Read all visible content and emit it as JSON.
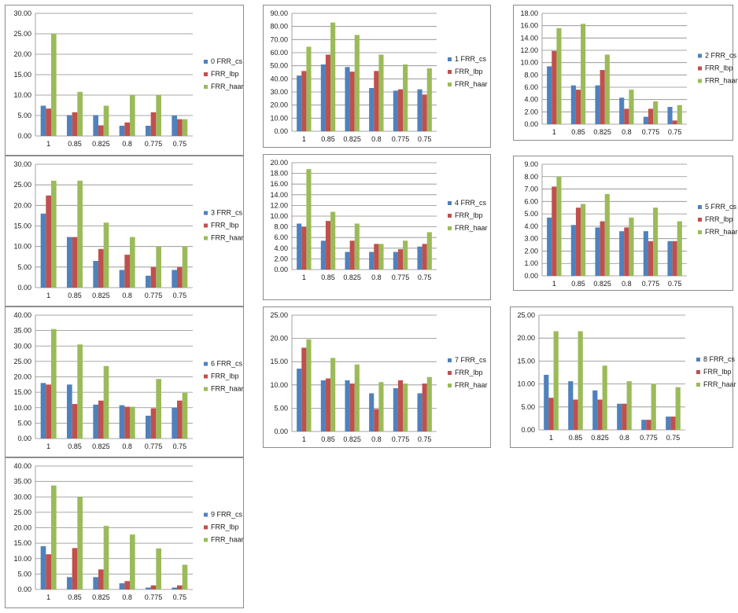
{
  "colors": {
    "FRR_cs": "#4F81BD",
    "FRR_lbp": "#C0504D",
    "FRR_haar": "#9BBB59"
  },
  "chart_data": [
    {
      "id": "c0",
      "type": "bar",
      "categories": [
        "1",
        "0.85",
        "0.825",
        "0.8",
        "0.775",
        "0.75"
      ],
      "ylim": [
        0,
        30
      ],
      "ystep": 5,
      "yticks": [
        "0.00",
        "5.00",
        "10.00",
        "15.00",
        "20.00",
        "25.00",
        "30.00"
      ],
      "legend_position": "right",
      "grid": true,
      "series": [
        {
          "name": "0 FRR_cs",
          "key": "FRR_cs",
          "values": [
            7.4,
            5.1,
            5.1,
            2.5,
            2.5,
            5.0
          ]
        },
        {
          "name": "FRR_lbp",
          "key": "FRR_lbp",
          "values": [
            6.7,
            5.8,
            2.6,
            3.3,
            5.8,
            4.1
          ]
        },
        {
          "name": "FRR_haar",
          "key": "FRR_haar",
          "values": [
            25.0,
            10.8,
            7.4,
            10.0,
            10.0,
            4.1
          ]
        }
      ]
    },
    {
      "id": "c1",
      "type": "bar",
      "categories": [
        "1",
        "0.85",
        "0.825",
        "0.8",
        "0.775",
        "0.75"
      ],
      "ylim": [
        0,
        90
      ],
      "ystep": 10,
      "yticks": [
        "0.00",
        "10.00",
        "20.00",
        "30.00",
        "40.00",
        "50.00",
        "60.00",
        "70.00",
        "80.00",
        "90.00"
      ],
      "legend_position": "right",
      "grid": true,
      "series": [
        {
          "name": "1 FRR_cs",
          "key": "FRR_cs",
          "values": [
            42.5,
            51.0,
            49.0,
            33.0,
            31.0,
            32.0
          ]
        },
        {
          "name": "FRR_lbp",
          "key": "FRR_lbp",
          "values": [
            46.0,
            58.5,
            45.5,
            46.0,
            32.0,
            28.0
          ]
        },
        {
          "name": "FRR_haar",
          "key": "FRR_haar",
          "values": [
            64.5,
            83.0,
            73.5,
            58.5,
            51.0,
            48.0
          ]
        }
      ]
    },
    {
      "id": "c2",
      "type": "bar",
      "categories": [
        "1",
        "0.85",
        "0.825",
        "0.8",
        "0.775",
        "0.75"
      ],
      "ylim": [
        0,
        18
      ],
      "ystep": 2,
      "yticks": [
        "0.00",
        "2.00",
        "4.00",
        "6.00",
        "8.00",
        "10.00",
        "12.00",
        "14.00",
        "16.00",
        "18.00"
      ],
      "legend_position": "right",
      "grid": true,
      "series": [
        {
          "name": "2 FRR_cs",
          "key": "FRR_cs",
          "values": [
            9.4,
            6.3,
            6.3,
            4.3,
            1.2,
            2.8
          ]
        },
        {
          "name": "FRR_lbp",
          "key": "FRR_lbp",
          "values": [
            11.9,
            5.6,
            8.8,
            2.5,
            2.5,
            0.6
          ]
        },
        {
          "name": "FRR_haar",
          "key": "FRR_haar",
          "values": [
            15.6,
            16.3,
            11.3,
            5.6,
            3.7,
            3.1
          ]
        }
      ]
    },
    {
      "id": "c3",
      "type": "bar",
      "categories": [
        "1",
        "0.85",
        "0.825",
        "0.8",
        "0.775",
        "0.75"
      ],
      "ylim": [
        0,
        30
      ],
      "ystep": 5,
      "yticks": [
        "0.00",
        "5.00",
        "10.00",
        "15.00",
        "20.00",
        "25.00",
        "30.00"
      ],
      "legend_position": "right",
      "grid": true,
      "series": [
        {
          "name": "3 FRR_cs",
          "key": "FRR_cs",
          "values": [
            18.0,
            12.3,
            6.5,
            4.3,
            2.9,
            4.3
          ]
        },
        {
          "name": "FRR_lbp",
          "key": "FRR_lbp",
          "values": [
            22.4,
            12.3,
            9.4,
            8.0,
            5.0,
            5.0
          ]
        },
        {
          "name": "FRR_haar",
          "key": "FRR_haar",
          "values": [
            26.0,
            26.0,
            15.8,
            12.3,
            10.0,
            10.0
          ]
        }
      ]
    },
    {
      "id": "c4",
      "type": "bar",
      "categories": [
        "1",
        "0.85",
        "0.825",
        "0.8",
        "0.775",
        "0.75"
      ],
      "ylim": [
        0,
        20
      ],
      "ystep": 2,
      "yticks": [
        "0.00",
        "2.00",
        "4.00",
        "6.00",
        "8.00",
        "10.00",
        "12.00",
        "14.00",
        "16.00",
        "18.00",
        "20.00"
      ],
      "legend_position": "right",
      "grid": true,
      "series": [
        {
          "name": "4 FRR_cs",
          "key": "FRR_cs",
          "values": [
            8.6,
            5.4,
            3.3,
            3.3,
            3.3,
            4.3
          ]
        },
        {
          "name": "FRR_lbp",
          "key": "FRR_lbp",
          "values": [
            8.0,
            9.1,
            5.4,
            4.8,
            3.8,
            4.8
          ]
        },
        {
          "name": "FRR_haar",
          "key": "FRR_haar",
          "values": [
            18.8,
            10.8,
            8.6,
            4.8,
            5.4,
            7.0
          ]
        }
      ]
    },
    {
      "id": "c5",
      "type": "bar",
      "categories": [
        "1",
        "0.85",
        "0.825",
        "0.8",
        "0.775",
        "0.75"
      ],
      "ylim": [
        0,
        9
      ],
      "ystep": 1,
      "yticks": [
        "0.00",
        "1.00",
        "2.00",
        "3.00",
        "4.00",
        "5.00",
        "6.00",
        "7.00",
        "8.00",
        "9.00"
      ],
      "legend_position": "right",
      "grid": true,
      "series": [
        {
          "name": "5 FRR_cs",
          "key": "FRR_cs",
          "values": [
            4.7,
            4.1,
            3.9,
            3.6,
            3.6,
            2.8
          ]
        },
        {
          "name": "FRR_lbp",
          "key": "FRR_lbp",
          "values": [
            7.2,
            5.5,
            4.4,
            3.9,
            2.8,
            2.8
          ]
        },
        {
          "name": "FRR_haar",
          "key": "FRR_haar",
          "values": [
            8.0,
            5.8,
            6.6,
            4.7,
            5.5,
            4.4
          ]
        }
      ]
    },
    {
      "id": "c6",
      "type": "bar",
      "categories": [
        "1",
        "0.85",
        "0.825",
        "0.8",
        "0.775",
        "0.75"
      ],
      "ylim": [
        0,
        40
      ],
      "ystep": 5,
      "yticks": [
        "0.00",
        "5.00",
        "10.00",
        "15.00",
        "20.00",
        "25.00",
        "30.00",
        "35.00",
        "40.00"
      ],
      "legend_position": "right",
      "grid": true,
      "series": [
        {
          "name": "6 FRR_cs",
          "key": "FRR_cs",
          "values": [
            18.0,
            17.5,
            11.0,
            10.8,
            7.4,
            10.0
          ]
        },
        {
          "name": "FRR_lbp",
          "key": "FRR_lbp",
          "values": [
            17.5,
            11.2,
            12.3,
            10.3,
            9.8,
            12.3
          ]
        },
        {
          "name": "FRR_haar",
          "key": "FRR_haar",
          "values": [
            35.5,
            30.5,
            23.5,
            10.3,
            19.3,
            14.8
          ]
        }
      ]
    },
    {
      "id": "c7",
      "type": "bar",
      "categories": [
        "1",
        "0.85",
        "0.825",
        "0.8",
        "0.775",
        "0.75"
      ],
      "ylim": [
        0,
        25
      ],
      "ystep": 5,
      "yticks": [
        "0.00",
        "5.00",
        "10.00",
        "15.00",
        "20.00",
        "25.00"
      ],
      "legend_position": "right",
      "grid": true,
      "series": [
        {
          "name": "7 FRR_cs",
          "key": "FRR_cs",
          "values": [
            13.5,
            11.0,
            11.0,
            8.2,
            9.3,
            8.2
          ]
        },
        {
          "name": "FRR_lbp",
          "key": "FRR_lbp",
          "values": [
            18.0,
            11.4,
            10.3,
            4.8,
            11.0,
            10.3
          ]
        },
        {
          "name": "FRR_haar",
          "key": "FRR_haar",
          "values": [
            19.8,
            15.8,
            14.4,
            10.6,
            10.3,
            11.7
          ]
        }
      ]
    },
    {
      "id": "c8",
      "type": "bar",
      "categories": [
        "1",
        "0.85",
        "0.825",
        "0.8",
        "0.775",
        "0.75"
      ],
      "ylim": [
        0,
        25
      ],
      "ystep": 5,
      "yticks": [
        "0.00",
        "5.00",
        "10.00",
        "15.00",
        "20.00",
        "25.00"
      ],
      "legend_position": "right",
      "grid": true,
      "series": [
        {
          "name": "8 FRR_cs",
          "key": "FRR_cs",
          "values": [
            12.0,
            10.6,
            8.6,
            5.7,
            2.2,
            2.9
          ]
        },
        {
          "name": "FRR_lbp",
          "key": "FRR_lbp",
          "values": [
            7.0,
            6.6,
            6.6,
            5.7,
            2.2,
            2.9
          ]
        },
        {
          "name": "FRR_haar",
          "key": "FRR_haar",
          "values": [
            21.5,
            21.5,
            14.0,
            10.6,
            10.0,
            9.3
          ]
        }
      ]
    },
    {
      "id": "c9",
      "type": "bar",
      "categories": [
        "1",
        "0.85",
        "0.825",
        "0.8",
        "0.775",
        "0.75"
      ],
      "ylim": [
        0,
        40
      ],
      "ystep": 5,
      "yticks": [
        "0.00",
        "5.00",
        "10.00",
        "15.00",
        "20.00",
        "25.00",
        "30.00",
        "35.00",
        "40.00"
      ],
      "legend_position": "right",
      "grid": true,
      "series": [
        {
          "name": "9 FRR_cs",
          "key": "FRR_cs",
          "values": [
            14.0,
            4.0,
            4.0,
            2.0,
            0.6,
            0.6
          ]
        },
        {
          "name": "FRR_lbp",
          "key": "FRR_lbp",
          "values": [
            11.4,
            13.4,
            6.5,
            2.7,
            1.3,
            1.3
          ]
        },
        {
          "name": "FRR_haar",
          "key": "FRR_haar",
          "values": [
            33.7,
            30.0,
            20.6,
            17.8,
            13.3,
            8.0
          ]
        }
      ]
    }
  ]
}
